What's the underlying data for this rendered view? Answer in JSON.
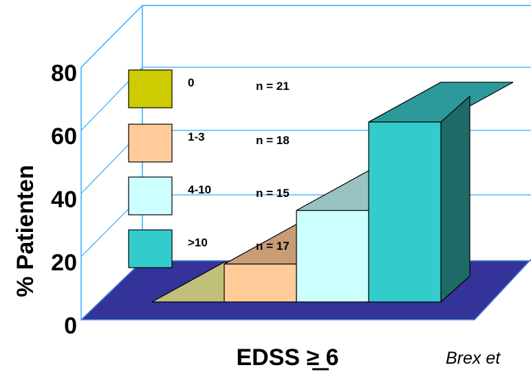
{
  "chart_data": {
    "type": "bar",
    "style": "3d",
    "categories": [
      "0",
      "1-3",
      "4-10",
      ">10"
    ],
    "values": [
      0,
      12,
      29,
      57
    ],
    "ylim": [
      0,
      80
    ],
    "yticks": [
      "0",
      "20",
      "40",
      "60",
      "80"
    ],
    "ylabel": "% Patienten",
    "xlabel": "EDSS ≥ 6",
    "grid": true,
    "legend_placement": "inside-left",
    "legend": [
      {
        "label": "0",
        "n": "n = 21"
      },
      {
        "label": "1-3",
        "n": "n = 18"
      },
      {
        "label": "4-10",
        "n": "n = 15"
      },
      {
        "label": ">10",
        "n": "n = 17"
      }
    ],
    "citation": "Brex et",
    "colors": {
      "series": [
        {
          "front": "#CCCC00",
          "top": "#C0C07A",
          "side": "#8E8E3A"
        },
        {
          "front": "#FFCC99",
          "top": "#C89C74",
          "side": "#A77A55"
        },
        {
          "front": "#CCFFFF",
          "top": "#99C2C2",
          "side": "#7AA3A3"
        },
        {
          "front": "#33CCCC",
          "top": "#2C9A9A",
          "side": "#1E6A66"
        }
      ],
      "floor": "#333399",
      "wall_lines": "#33AAFF"
    }
  }
}
